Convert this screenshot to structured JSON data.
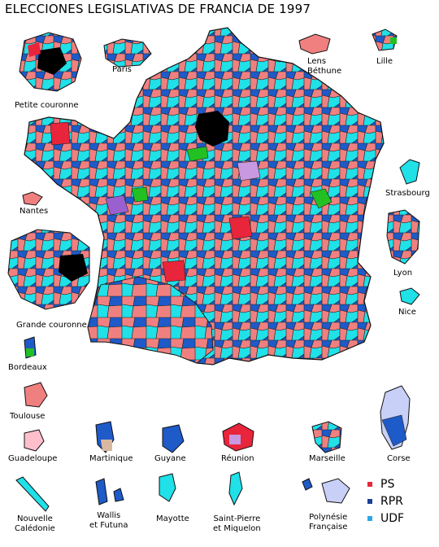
{
  "title": "ELECCIONES LEGISLATIVAS DE FRANCIA DE 1997",
  "colors": {
    "ps": "#f08080",
    "ps_strong": "#e8253a",
    "rpr": "#1e5ac8",
    "udf": "#20e0e8",
    "other_left": "#ffc0cb",
    "green": "#22c022",
    "black": "#000000",
    "purple": "#c898e0",
    "border": "#222222"
  },
  "labels": {
    "paris": "Paris",
    "lens": "Lens\nBéthune",
    "lille": "Lille",
    "petite_couronne": "Petite couronne",
    "strasbourg": "Strasbourg",
    "nantes": "Nantes",
    "lyon": "Lyon",
    "nice": "Nice",
    "grande_couronne": "Grande couronne",
    "bordeaux": "Bordeaux",
    "toulouse": "Toulouse",
    "corse": "Corse",
    "guadeloupe": "Guadeloupe",
    "martinique": "Martinique",
    "guyane": "Guyane",
    "reunion": "Réunion",
    "marseille": "Marseille",
    "nouvelle_caledonie": "Nouvelle\nCalédonie",
    "wallis": "Wallis\net Futuna",
    "mayotte": "Mayotte",
    "spm": "Saint-Pierre\net Miquelon",
    "polynesie": "Polynésie\nFrançaise"
  },
  "legend": [
    {
      "label": "PS",
      "color": "#e8253a"
    },
    {
      "label": "RPR",
      "color": "#1a3f99"
    },
    {
      "label": "UDF",
      "color": "#2aa8e8"
    }
  ]
}
